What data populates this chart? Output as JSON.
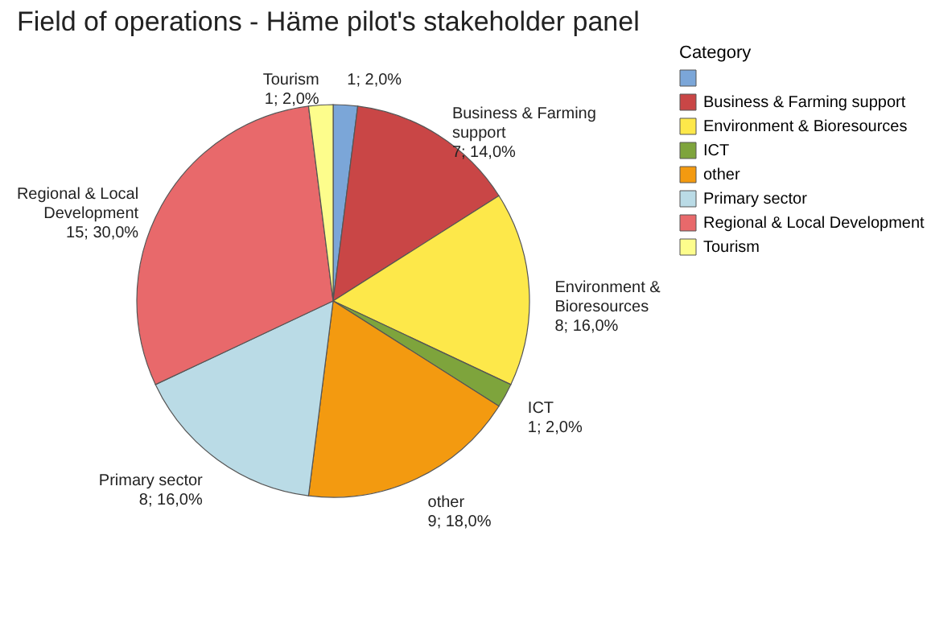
{
  "chart_data": {
    "type": "pie",
    "title": "Field of operations - Häme pilot's stakeholder panel",
    "legend_title": "Category",
    "legend": "top right",
    "categories": [
      null,
      "Business & Farming support",
      "Environment & Bioresources",
      "ICT",
      "other",
      "Primary sector",
      "Regional & Local Development",
      "Tourism"
    ],
    "values": [
      1,
      7,
      8,
      1,
      9,
      8,
      15,
      1
    ],
    "value_labels": [
      "1; 2,0%",
      "7; 14,0%",
      "8; 16,0%",
      "1; 2,0%",
      "9; 18,0%",
      "8; 16,0%",
      "15; 30,0%",
      "1; 2,0%"
    ],
    "colors": [
      "#7ba6d8",
      "#c94646",
      "#fde84a",
      "#7ea43c",
      "#f39a10",
      "#badbe6",
      "#e8696b",
      "#fdfd8c"
    ]
  }
}
